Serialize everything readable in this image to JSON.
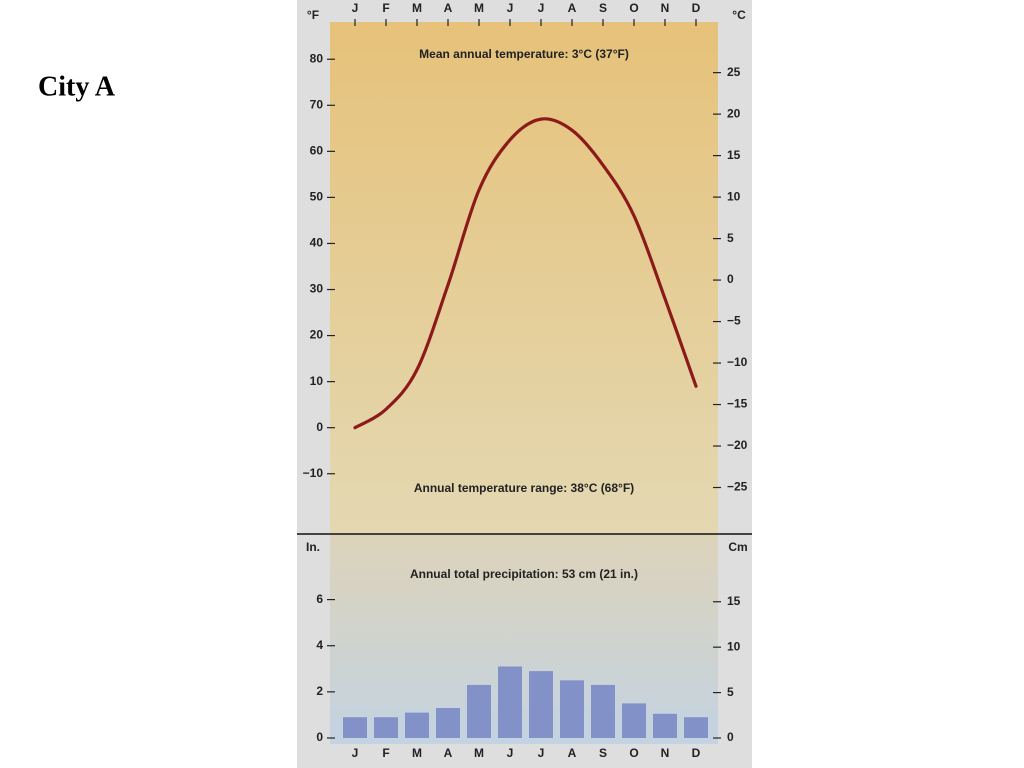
{
  "slide_title": "City A",
  "chart_data": [
    {
      "type": "line",
      "y_label": "°F",
      "y2_label": "°C",
      "annotations": [
        "Mean annual temperature: 3°C (37°F)",
        "Annual temperature range: 38°C (68°F)"
      ],
      "categories": [
        "J",
        "F",
        "M",
        "A",
        "M",
        "J",
        "J",
        "A",
        "S",
        "O",
        "N",
        "D"
      ],
      "values": [
        0,
        4,
        12.6,
        31,
        51.6,
        62.5,
        67,
        64.6,
        57,
        46,
        28,
        9
      ],
      "color": "#8b1a1a",
      "ylim": [
        -22,
        87
      ],
      "yticks": [
        {
          "value": -10,
          "label": "−10"
        },
        0,
        10,
        20,
        30,
        40,
        50,
        60,
        70,
        80
      ],
      "y2lim": [
        -30,
        30.5
      ],
      "y2ticks": [
        {
          "value": -25,
          "label": "−25"
        },
        {
          "value": -20,
          "label": "−20"
        },
        {
          "value": -15,
          "label": "−15"
        },
        {
          "value": -10,
          "label": "−10"
        },
        {
          "value": -5,
          "label": "−5"
        },
        0,
        5,
        10,
        15,
        20,
        25
      ]
    },
    {
      "type": "bar",
      "y_label": "In.",
      "y2_label": "Cm",
      "annotations": [
        "Annual total precipitation: 53 cm (21 in.)"
      ],
      "categories": [
        "J",
        "F",
        "M",
        "A",
        "M",
        "J",
        "J",
        "A",
        "S",
        "O",
        "N",
        "D"
      ],
      "values": [
        0.9,
        0.9,
        1.1,
        1.3,
        2.3,
        3.1,
        2.9,
        2.5,
        2.3,
        1.5,
        1.05,
        0.9
      ],
      "color": "#8391c9",
      "ylim": [
        0,
        8.8
      ],
      "yticks": [
        0,
        2,
        4,
        6
      ],
      "y2lim": [
        0,
        22.35
      ],
      "y2ticks": [
        0,
        5,
        10,
        15
      ]
    }
  ]
}
